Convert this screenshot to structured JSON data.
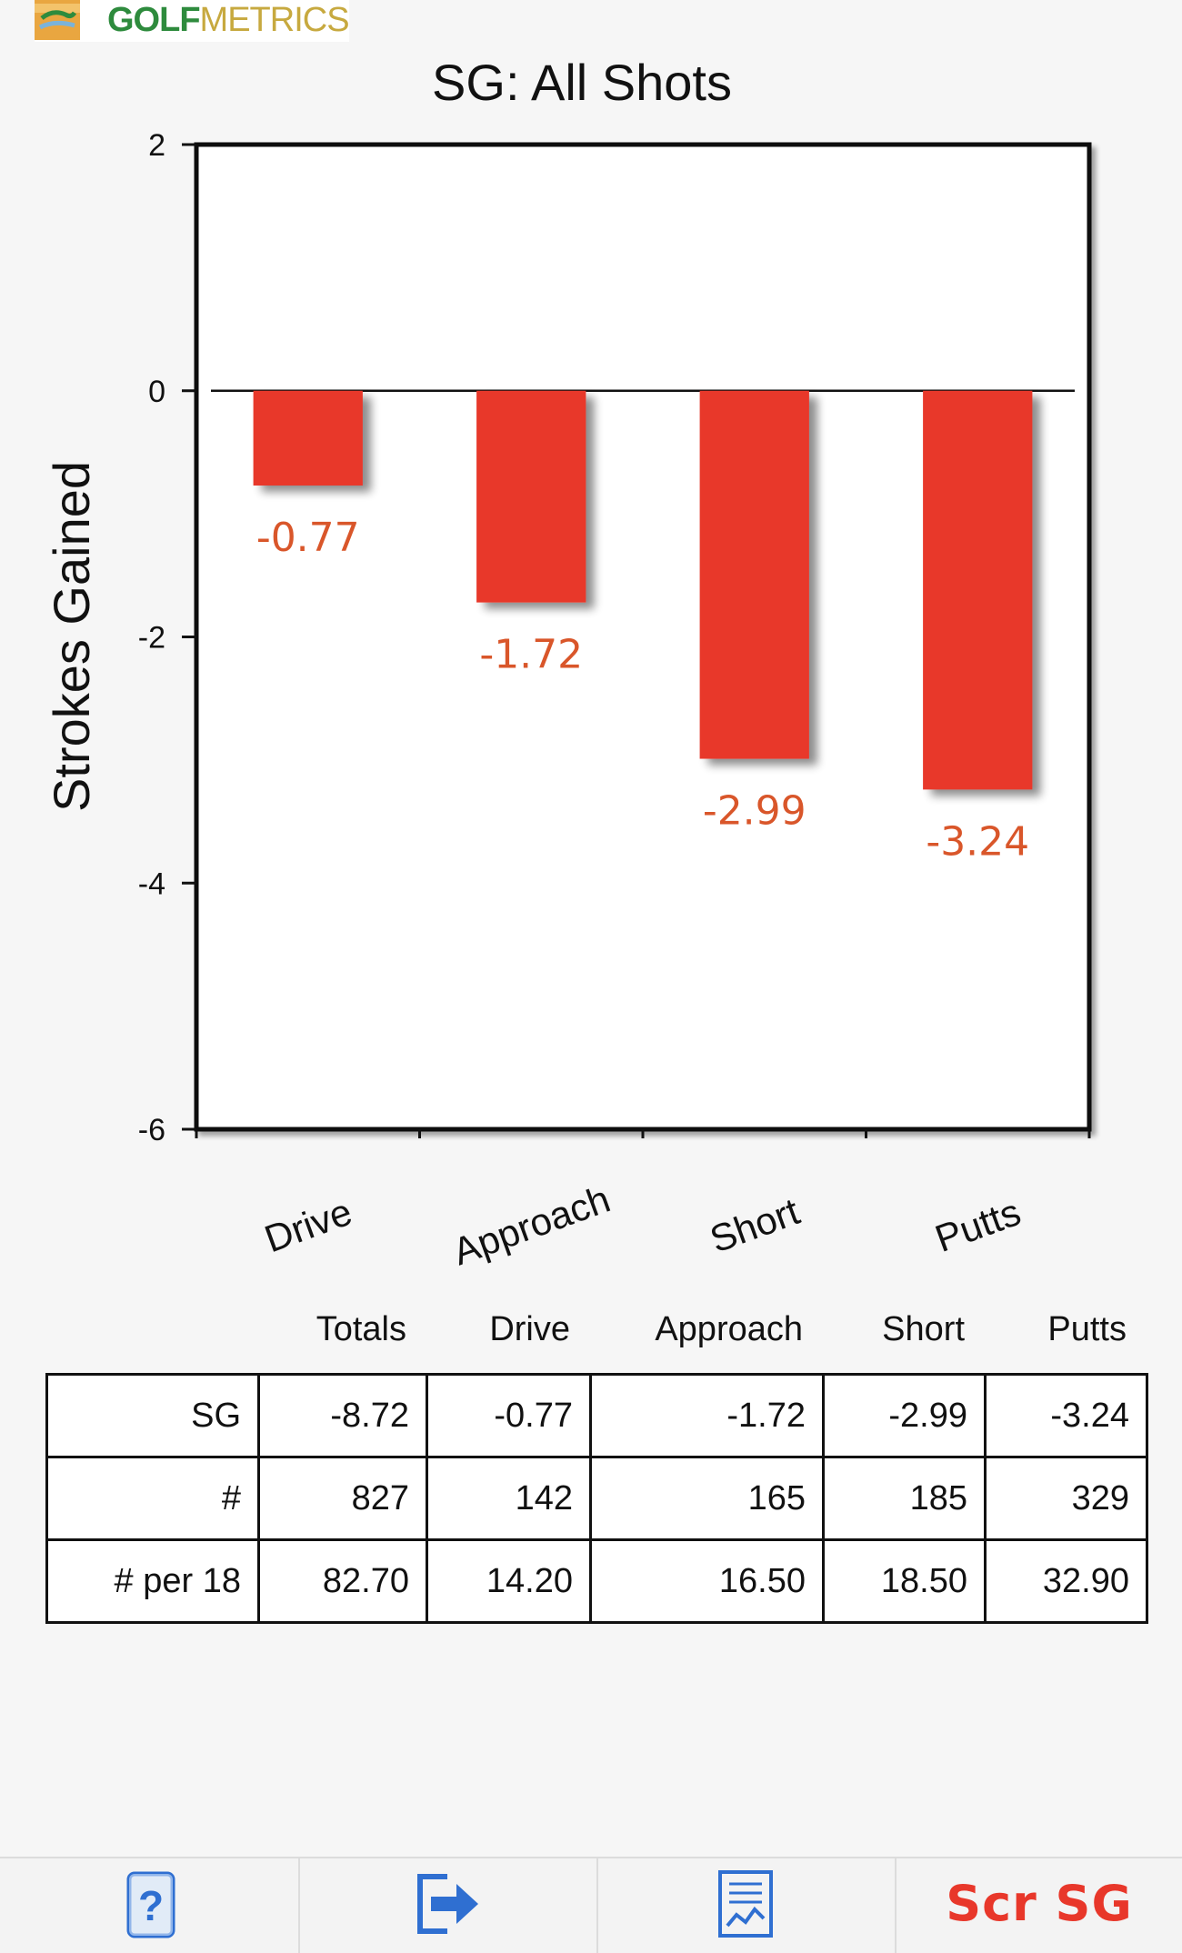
{
  "app": {
    "logo_prefix": "GOLF",
    "logo_suffix": "METRICS",
    "brand_green": "#2e8b3d",
    "brand_gold": "#c7a93f"
  },
  "chart_data": {
    "type": "bar",
    "title": "SG: All Shots",
    "xlabel": "",
    "ylabel": "Strokes Gained",
    "categories": [
      "Drive",
      "Approach",
      "Short",
      "Putts"
    ],
    "values": [
      -0.77,
      -1.72,
      -2.99,
      -3.24
    ],
    "data_labels": [
      "-0.77",
      "-1.72",
      "-2.99",
      "-3.24"
    ],
    "ylim": [
      -6,
      2
    ],
    "yticks": [
      2,
      0,
      -2,
      -4,
      -6
    ],
    "grid": false,
    "bar_color": "#e8372a",
    "label_color": "#d9562a"
  },
  "stats": {
    "columns": [
      "Totals",
      "Drive",
      "Approach",
      "Short",
      "Putts"
    ],
    "rows": [
      {
        "label": "SG",
        "values": [
          "-8.72",
          "-0.77",
          "-1.72",
          "-2.99",
          "-3.24"
        ]
      },
      {
        "label": "#",
        "values": [
          "827",
          "142",
          "165",
          "185",
          "329"
        ]
      },
      {
        "label": "# per 18",
        "values": [
          "82.70",
          "14.20",
          "16.50",
          "18.50",
          "32.90"
        ]
      }
    ]
  },
  "toolbar": {
    "items": [
      {
        "icon": "help-phone-icon"
      },
      {
        "icon": "export-icon"
      },
      {
        "icon": "report-chart-icon"
      },
      {
        "label": "Scr SG"
      }
    ],
    "accent": "#e8372a",
    "icon_color": "#2f6fd1"
  }
}
